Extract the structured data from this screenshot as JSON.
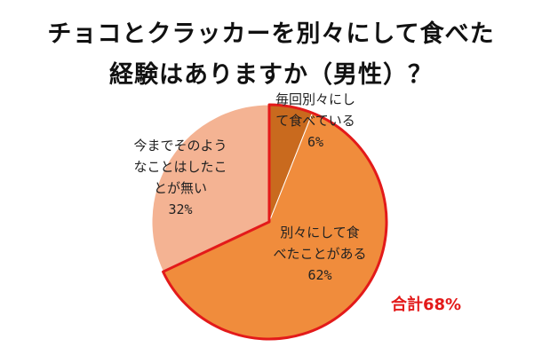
{
  "chart_data": {
    "type": "pie",
    "title_lines": [
      "チョコとクラッカーを別々にして食べた",
      "経験はありますか（男性）？"
    ],
    "slices": [
      {
        "label_lines": [
          "毎回別々にし",
          "て食べている"
        ],
        "pct_label": "6%",
        "value": 6,
        "color": "#c96a1e"
      },
      {
        "label_lines": [
          "別々にして食",
          "べたことがある"
        ],
        "pct_label": "62%",
        "value": 62,
        "color": "#f08c3c"
      },
      {
        "label_lines": [
          "今までそのよう",
          "なことはしたこ",
          "とが無い"
        ],
        "pct_label": "32%",
        "value": 32,
        "color": "#f4b393"
      }
    ],
    "annotation": "合計68%",
    "highlight_color": "#e31a1a",
    "legend": "none"
  }
}
